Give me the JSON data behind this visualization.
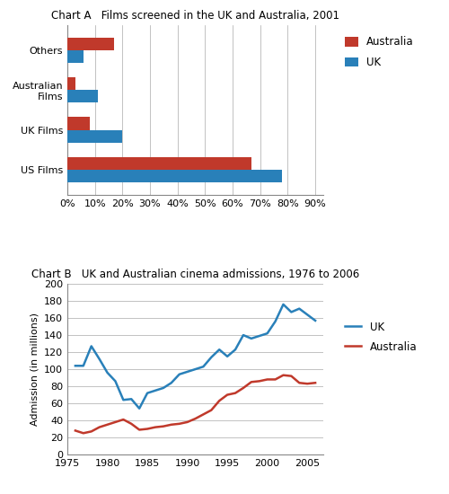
{
  "chart_a": {
    "title": "Chart A   Films screened in the UK and Australia, 2001",
    "categories": [
      "US Films",
      "UK Films",
      "Australian\nFilms",
      "Others"
    ],
    "australia_values": [
      0.67,
      0.08,
      0.03,
      0.17
    ],
    "uk_values": [
      0.78,
      0.2,
      0.11,
      0.06
    ],
    "australia_color": "#c0392b",
    "uk_color": "#2980b9",
    "xticks": [
      0.0,
      0.1,
      0.2,
      0.3,
      0.4,
      0.5,
      0.6,
      0.7,
      0.8,
      0.9
    ],
    "xtick_labels": [
      "0%",
      "10%",
      "20%",
      "30%",
      "40%",
      "50%",
      "60%",
      "70%",
      "80%",
      "90%"
    ],
    "xlim": [
      0,
      0.93
    ]
  },
  "chart_b": {
    "title": "Chart B   UK and Australian cinema admissions, 1976 to 2006",
    "ylabel": "Admission (in millions)",
    "uk_color": "#2980b9",
    "australia_color": "#c0392b",
    "years": [
      1976,
      1977,
      1978,
      1979,
      1980,
      1981,
      1982,
      1983,
      1984,
      1985,
      1986,
      1987,
      1988,
      1989,
      1990,
      1991,
      1992,
      1993,
      1994,
      1995,
      1996,
      1997,
      1998,
      1999,
      2000,
      2001,
      2002,
      2003,
      2004,
      2005,
      2006
    ],
    "uk_admissions": [
      104,
      104,
      127,
      112,
      96,
      86,
      64,
      65,
      54,
      72,
      75,
      78,
      84,
      94,
      97,
      100,
      103,
      114,
      123,
      115,
      123,
      140,
      136,
      139,
      142,
      156,
      176,
      167,
      171,
      164,
      157
    ],
    "australia_admissions": [
      28,
      25,
      27,
      32,
      35,
      38,
      41,
      36,
      29,
      30,
      32,
      33,
      35,
      36,
      38,
      42,
      47,
      52,
      63,
      70,
      72,
      78,
      85,
      86,
      88,
      88,
      93,
      92,
      84,
      83,
      84
    ],
    "ylim": [
      0,
      200
    ],
    "yticks": [
      0,
      20,
      40,
      60,
      80,
      100,
      120,
      140,
      160,
      180,
      200
    ],
    "xlim": [
      1975,
      2007
    ],
    "xticks": [
      1975,
      1980,
      1985,
      1990,
      1995,
      2000,
      2005
    ]
  }
}
